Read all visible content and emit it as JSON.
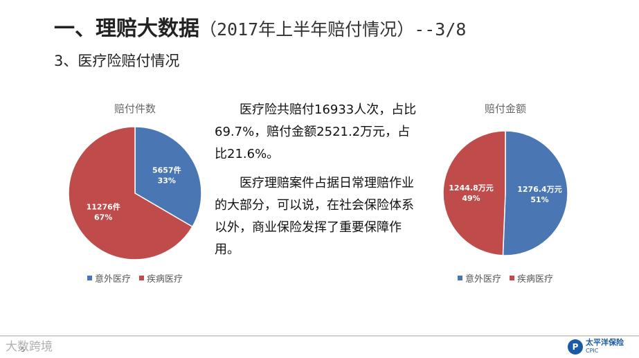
{
  "title": {
    "main": "一、理赔大数据",
    "sub": "（2017年上半年赔付情况）--3/8"
  },
  "section": "3、医疗险赔付情况",
  "body_text": {
    "p1": "医疗险共赔付16933人次，占比69.7%，赔付金额2521.2万元，占比21.6%。",
    "p2": "医疗理赔案件占据日常理赔作业的大部分，可以说，在社会保险体系以外，商业保险发挥了重要保障作用。"
  },
  "colors": {
    "blue": "#4a77b4",
    "red": "#c04b4b"
  },
  "chart_data": [
    {
      "type": "pie",
      "title": "赔付件数",
      "categories": [
        "意外医疗",
        "疾病医疗"
      ],
      "values": [
        5657,
        11276
      ],
      "labels": [
        {
          "value": "5657件",
          "percent": "33%"
        },
        {
          "value": "11276件",
          "percent": "67%"
        }
      ],
      "legend": "bottom"
    },
    {
      "type": "pie",
      "title": "赔付金额",
      "categories": [
        "意外医疗",
        "疾病医疗"
      ],
      "values": [
        1276.4,
        1244.8
      ],
      "labels": [
        {
          "value": "1276.4万元",
          "percent": "51%"
        },
        {
          "value": "1244.8万元",
          "percent": "49%"
        }
      ],
      "legend": "bottom"
    }
  ],
  "footer": {
    "watermark": "大数跨境",
    "page_number": "5",
    "logo_cn": "太平洋保险",
    "logo_en": "CPIC"
  }
}
